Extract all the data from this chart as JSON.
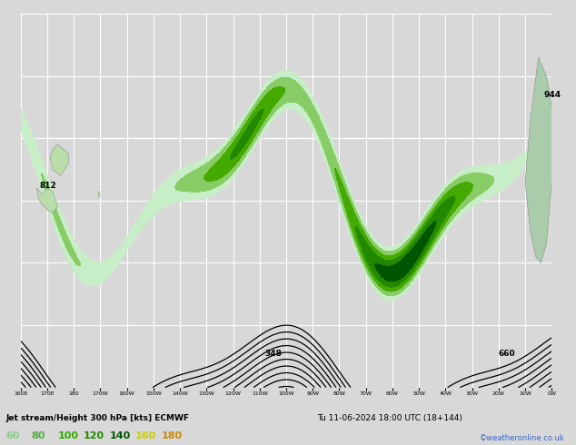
{
  "title": "Jet stream/Height 300 hPa [kts] ECMWF",
  "subtitle": "Tu 11-06-2024 18:00 UTC (18+144)",
  "watermark": "©weatheronline.co.uk",
  "legend_values": [
    60,
    80,
    100,
    120,
    140,
    160,
    180
  ],
  "fill_colors": [
    "#c8eec8",
    "#88cc66",
    "#44aa00",
    "#228800",
    "#005500",
    "#eeee00",
    "#ffaa00"
  ],
  "background_color": "#d8d8d8",
  "grid_color": "#ffffff",
  "contour_color": "#000000",
  "lon_min": 160,
  "lon_max": 360,
  "lat_min": -75,
  "lat_max": -15,
  "jet_peak_lon_1": 310,
  "jet_peak_lon_2": 240,
  "label_944_lon": 357,
  "label_944_lat": -28,
  "label_812_lon": 167,
  "label_812_lat": -43,
  "label_660_lon": 340,
  "label_660_lat": -70,
  "label_348_lon": 252,
  "label_348_lat": -70
}
